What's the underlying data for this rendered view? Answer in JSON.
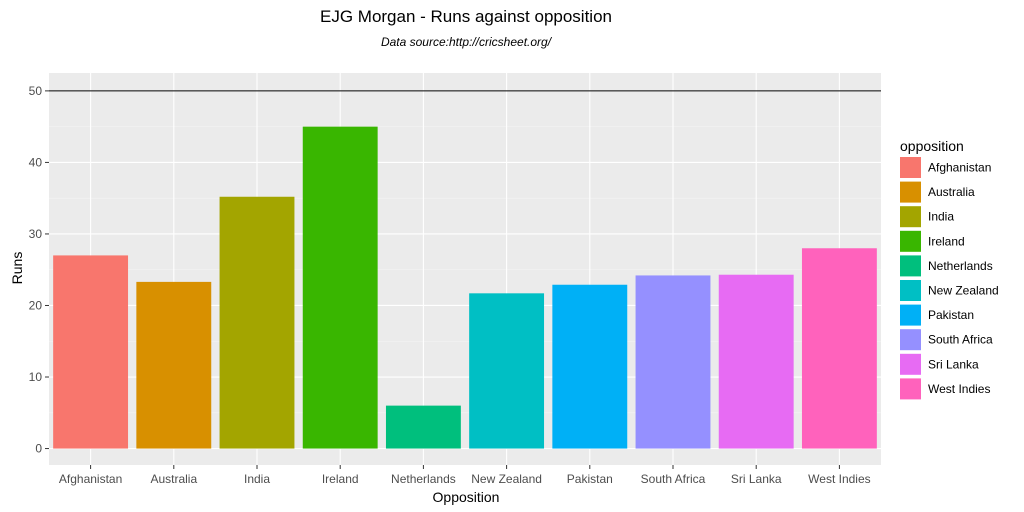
{
  "chart_data": {
    "type": "bar",
    "title": "EJG Morgan - Runs against opposition",
    "subtitle": "Data source:http://cricsheet.org/",
    "xlabel": "Opposition",
    "ylabel": "Runs",
    "ylim": [
      -2.3,
      52.5
    ],
    "yticks": [
      0,
      10,
      20,
      30,
      40,
      50
    ],
    "hline": 50,
    "grid": true,
    "legend": {
      "title": "opposition",
      "position": "right"
    },
    "categories": [
      "Afghanistan",
      "Australia",
      "India",
      "Ireland",
      "Netherlands",
      "New Zealand",
      "Pakistan",
      "South Africa",
      "Sri Lanka",
      "West Indies"
    ],
    "values": [
      27.0,
      23.3,
      35.2,
      45.0,
      6.0,
      21.7,
      22.9,
      24.2,
      24.3,
      28.0
    ],
    "colors": [
      "#F8766D",
      "#D89000",
      "#A3A500",
      "#39B600",
      "#00BF7D",
      "#00BFC4",
      "#00B0F6",
      "#9590FF",
      "#E76BF3",
      "#FF62BC"
    ]
  }
}
